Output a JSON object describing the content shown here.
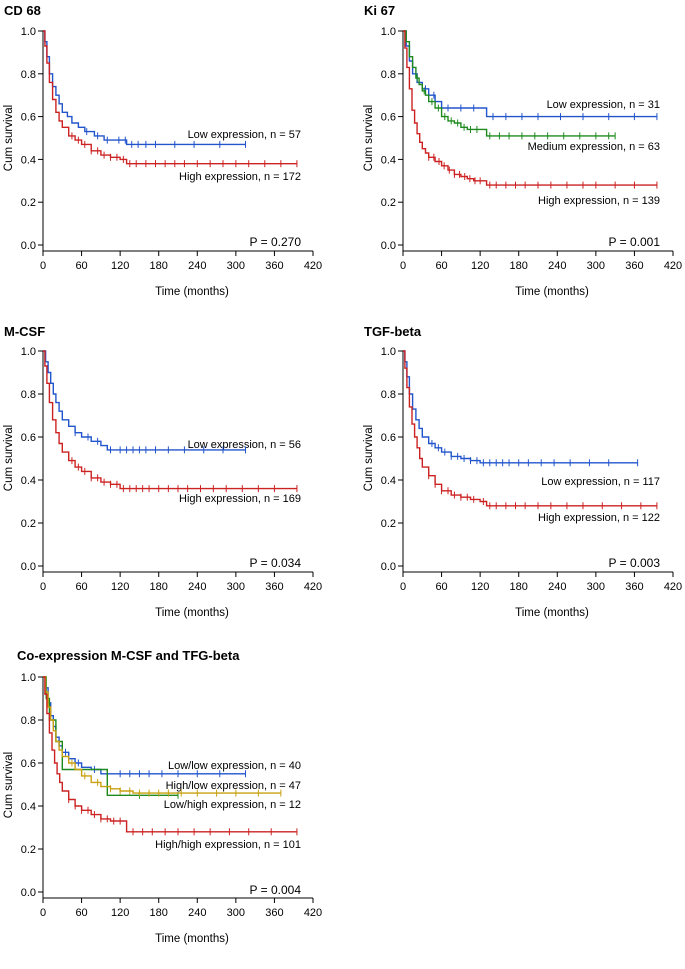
{
  "chart_data": [
    {
      "type": "line",
      "title": "CD 68",
      "xlabel": "Time (months)",
      "ylabel": "Cum survival",
      "xlim": [
        0,
        420
      ],
      "ylim": [
        0,
        1.0
      ],
      "xticks": [
        "0",
        "60",
        "120",
        "180",
        "240",
        "300",
        "360",
        "420"
      ],
      "yticks": [
        "0.0",
        "0.2",
        "0.4",
        "0.6",
        "0.8",
        "1.0"
      ],
      "p_value": "P = 0.270",
      "series": [
        {
          "name": "Low expression",
          "label": "Low expression, n = 57",
          "color": "#2255cc",
          "x": [
            0,
            3,
            6,
            10,
            15,
            20,
            25,
            30,
            38,
            45,
            55,
            65,
            80,
            95,
            110,
            130,
            160,
            200,
            250,
            315
          ],
          "values": [
            1.0,
            0.95,
            0.88,
            0.8,
            0.74,
            0.7,
            0.66,
            0.62,
            0.6,
            0.57,
            0.55,
            0.53,
            0.51,
            0.49,
            0.49,
            0.47,
            0.47,
            0.47,
            0.47,
            0.47
          ],
          "censor_x": [
            68,
            85,
            100,
            118,
            128,
            138,
            148,
            160,
            175,
            205,
            235,
            275,
            315
          ]
        },
        {
          "name": "High expression",
          "label": "High expression, n = 172",
          "color": "#cc2222",
          "x": [
            0,
            3,
            6,
            10,
            15,
            20,
            25,
            30,
            40,
            50,
            60,
            75,
            90,
            105,
            120,
            130,
            180,
            250,
            330,
            395
          ],
          "values": [
            1.0,
            0.93,
            0.85,
            0.76,
            0.68,
            0.62,
            0.58,
            0.55,
            0.51,
            0.49,
            0.47,
            0.44,
            0.42,
            0.41,
            0.4,
            0.38,
            0.38,
            0.38,
            0.38,
            0.38
          ],
          "censor_x": [
            45,
            55,
            65,
            75,
            85,
            95,
            105,
            115,
            125,
            135,
            145,
            160,
            175,
            190,
            205,
            220,
            240,
            260,
            280,
            300,
            320,
            345,
            370,
            395
          ]
        }
      ]
    },
    {
      "type": "line",
      "title": "Ki 67",
      "xlabel": "Time (months)",
      "ylabel": "Cum survival",
      "xlim": [
        0,
        420
      ],
      "ylim": [
        0,
        1.0
      ],
      "xticks": [
        "0",
        "60",
        "120",
        "180",
        "240",
        "300",
        "360",
        "420"
      ],
      "yticks": [
        "0.0",
        "0.2",
        "0.4",
        "0.6",
        "0.8",
        "1.0"
      ],
      "p_value": "P = 0.001",
      "series": [
        {
          "name": "Low expression",
          "label": "Low expression, n = 31",
          "color": "#2255cc",
          "x": [
            0,
            5,
            10,
            15,
            22,
            30,
            40,
            50,
            60,
            80,
            100,
            125,
            130,
            200,
            300,
            395
          ],
          "values": [
            1.0,
            0.93,
            0.86,
            0.8,
            0.76,
            0.73,
            0.7,
            0.67,
            0.64,
            0.64,
            0.64,
            0.64,
            0.6,
            0.6,
            0.6,
            0.6
          ],
          "censor_x": [
            20,
            35,
            48,
            70,
            90,
            110,
            140,
            160,
            185,
            210,
            245,
            280,
            320,
            360,
            395
          ]
        },
        {
          "name": "Medium expression",
          "label": "Medium expression, n = 63",
          "color": "#1e8a1e",
          "x": [
            0,
            5,
            10,
            15,
            20,
            25,
            30,
            35,
            40,
            50,
            60,
            70,
            80,
            90,
            100,
            110,
            125,
            130,
            200,
            330
          ],
          "values": [
            1.0,
            0.95,
            0.88,
            0.83,
            0.78,
            0.75,
            0.72,
            0.7,
            0.67,
            0.64,
            0.6,
            0.58,
            0.57,
            0.55,
            0.54,
            0.54,
            0.54,
            0.51,
            0.51,
            0.51
          ],
          "censor_x": [
            22,
            33,
            45,
            55,
            65,
            75,
            85,
            95,
            105,
            115,
            135,
            150,
            165,
            185,
            205,
            225,
            250,
            275,
            300,
            320,
            330
          ]
        },
        {
          "name": "High expression",
          "label": "High expression, n = 139",
          "color": "#cc2222",
          "x": [
            0,
            3,
            6,
            10,
            14,
            18,
            22,
            26,
            30,
            35,
            40,
            50,
            60,
            70,
            80,
            90,
            100,
            110,
            120,
            130,
            200,
            300,
            395
          ],
          "values": [
            1.0,
            0.92,
            0.83,
            0.73,
            0.63,
            0.57,
            0.52,
            0.48,
            0.45,
            0.43,
            0.41,
            0.39,
            0.37,
            0.35,
            0.33,
            0.32,
            0.31,
            0.3,
            0.3,
            0.28,
            0.28,
            0.28,
            0.28
          ],
          "censor_x": [
            40,
            48,
            56,
            64,
            72,
            80,
            88,
            96,
            104,
            112,
            120,
            135,
            145,
            160,
            175,
            190,
            210,
            230,
            255,
            280,
            300,
            330,
            360,
            395
          ]
        }
      ]
    },
    {
      "type": "line",
      "title": "M-CSF",
      "xlabel": "Time (months)",
      "ylabel": "Cum survival",
      "xlim": [
        0,
        420
      ],
      "ylim": [
        0,
        1.0
      ],
      "xticks": [
        "0",
        "60",
        "120",
        "180",
        "240",
        "300",
        "360",
        "420"
      ],
      "yticks": [
        "0.0",
        "0.2",
        "0.4",
        "0.6",
        "0.8",
        "1.0"
      ],
      "p_value": "P = 0.034",
      "series": [
        {
          "name": "Low expression",
          "label": "Low expression, n = 56",
          "color": "#2255cc",
          "x": [
            0,
            4,
            8,
            12,
            16,
            20,
            25,
            30,
            40,
            50,
            60,
            75,
            90,
            100,
            150,
            250,
            315
          ],
          "values": [
            1.0,
            0.95,
            0.9,
            0.85,
            0.8,
            0.76,
            0.72,
            0.68,
            0.65,
            0.62,
            0.6,
            0.58,
            0.56,
            0.54,
            0.54,
            0.54,
            0.54
          ],
          "censor_x": [
            50,
            70,
            85,
            105,
            120,
            130,
            140,
            150,
            160,
            175,
            195,
            220,
            250,
            280,
            315
          ]
        },
        {
          "name": "High expression",
          "label": "High expression, n = 169",
          "color": "#cc2222",
          "x": [
            0,
            3,
            6,
            10,
            15,
            20,
            25,
            30,
            40,
            50,
            60,
            75,
            90,
            105,
            120,
            150,
            250,
            395
          ],
          "values": [
            1.0,
            0.93,
            0.85,
            0.76,
            0.68,
            0.62,
            0.57,
            0.53,
            0.49,
            0.46,
            0.44,
            0.41,
            0.39,
            0.38,
            0.36,
            0.36,
            0.36,
            0.36
          ],
          "censor_x": [
            45,
            55,
            65,
            75,
            85,
            95,
            105,
            115,
            125,
            135,
            145,
            155,
            165,
            180,
            195,
            210,
            225,
            245,
            265,
            285,
            310,
            335,
            360,
            395
          ]
        }
      ]
    },
    {
      "type": "line",
      "title": "TGF-beta",
      "xlabel": "Time (months)",
      "ylabel": "Cum survival",
      "xlim": [
        0,
        420
      ],
      "ylim": [
        0,
        1.0
      ],
      "xticks": [
        "0",
        "60",
        "120",
        "180",
        "240",
        "300",
        "360",
        "420"
      ],
      "yticks": [
        "0.0",
        "0.2",
        "0.4",
        "0.6",
        "0.8",
        "1.0"
      ],
      "p_value": "P = 0.003",
      "series": [
        {
          "name": "Low expression",
          "label": "Low expression, n = 117",
          "color": "#2255cc",
          "x": [
            0,
            3,
            6,
            10,
            15,
            20,
            25,
            30,
            40,
            50,
            60,
            75,
            90,
            105,
            120,
            140,
            250,
            365
          ],
          "values": [
            1.0,
            0.95,
            0.88,
            0.8,
            0.73,
            0.68,
            0.64,
            0.6,
            0.57,
            0.55,
            0.53,
            0.51,
            0.5,
            0.49,
            0.48,
            0.48,
            0.48,
            0.48
          ],
          "censor_x": [
            45,
            55,
            65,
            75,
            85,
            95,
            105,
            115,
            125,
            135,
            145,
            155,
            165,
            180,
            195,
            215,
            235,
            260,
            290,
            320,
            365
          ]
        },
        {
          "name": "High expression",
          "label": "High expression, n = 122",
          "color": "#cc2222",
          "x": [
            0,
            3,
            6,
            10,
            14,
            18,
            22,
            26,
            30,
            40,
            50,
            60,
            75,
            90,
            105,
            120,
            130,
            200,
            395
          ],
          "values": [
            1.0,
            0.92,
            0.83,
            0.74,
            0.66,
            0.6,
            0.55,
            0.5,
            0.46,
            0.42,
            0.38,
            0.35,
            0.33,
            0.32,
            0.31,
            0.3,
            0.28,
            0.28,
            0.28
          ],
          "censor_x": [
            40,
            50,
            60,
            70,
            80,
            90,
            100,
            110,
            125,
            135,
            145,
            160,
            175,
            190,
            210,
            230,
            255,
            280,
            310,
            340,
            370,
            395
          ]
        }
      ]
    },
    {
      "type": "line",
      "title": "Co-expression M-CSF and TFG-beta",
      "xlabel": "Time (months)",
      "ylabel": "Cum survival",
      "xlim": [
        0,
        420
      ],
      "ylim": [
        0,
        1.0
      ],
      "xticks": [
        "0",
        "60",
        "120",
        "180",
        "240",
        "300",
        "360",
        "420"
      ],
      "yticks": [
        "0.0",
        "0.2",
        "0.4",
        "0.6",
        "0.8",
        "1.0"
      ],
      "p_value": "P = 0.004",
      "series": [
        {
          "name": "Low/low expression",
          "label": "Low/low expression, n = 40",
          "color": "#2255cc",
          "x": [
            0,
            4,
            8,
            12,
            16,
            20,
            25,
            30,
            40,
            50,
            60,
            75,
            90,
            110,
            200,
            315
          ],
          "values": [
            1.0,
            0.95,
            0.88,
            0.82,
            0.77,
            0.72,
            0.68,
            0.65,
            0.62,
            0.6,
            0.58,
            0.57,
            0.55,
            0.55,
            0.55,
            0.55
          ],
          "censor_x": [
            35,
            55,
            80,
            100,
            120,
            135,
            150,
            165,
            185,
            210,
            240,
            275,
            315
          ]
        },
        {
          "name": "Low/high expression",
          "label": "Low/high expression, n = 12",
          "color": "#1e8a1e",
          "x": [
            0,
            5,
            10,
            20,
            30,
            90,
            100,
            210
          ],
          "values": [
            1.0,
            0.9,
            0.8,
            0.7,
            0.57,
            0.57,
            0.45,
            0.45
          ],
          "censor_x": [
            150,
            210
          ]
        },
        {
          "name": "High/low expression",
          "label": "High/low expression, n = 47",
          "color": "#c8a011",
          "x": [
            0,
            4,
            8,
            12,
            16,
            20,
            25,
            30,
            40,
            50,
            60,
            75,
            90,
            105,
            120,
            140,
            250,
            370
          ],
          "values": [
            1.0,
            0.93,
            0.86,
            0.8,
            0.75,
            0.7,
            0.66,
            0.63,
            0.6,
            0.57,
            0.54,
            0.51,
            0.49,
            0.48,
            0.47,
            0.46,
            0.46,
            0.46
          ],
          "censor_x": [
            45,
            65,
            85,
            105,
            120,
            135,
            150,
            165,
            180,
            195,
            215,
            240,
            270,
            300,
            335,
            370
          ]
        },
        {
          "name": "High/high expression",
          "label": "High/high expression, n = 101",
          "color": "#cc2222",
          "x": [
            0,
            3,
            6,
            10,
            14,
            18,
            22,
            26,
            30,
            40,
            50,
            60,
            75,
            90,
            105,
            120,
            130,
            200,
            395
          ],
          "values": [
            1.0,
            0.92,
            0.83,
            0.74,
            0.66,
            0.6,
            0.55,
            0.51,
            0.47,
            0.43,
            0.4,
            0.38,
            0.36,
            0.34,
            0.33,
            0.33,
            0.28,
            0.28,
            0.28
          ],
          "censor_x": [
            40,
            50,
            60,
            70,
            80,
            90,
            100,
            110,
            120,
            140,
            155,
            170,
            190,
            210,
            235,
            260,
            290,
            320,
            355,
            395
          ]
        }
      ]
    }
  ]
}
